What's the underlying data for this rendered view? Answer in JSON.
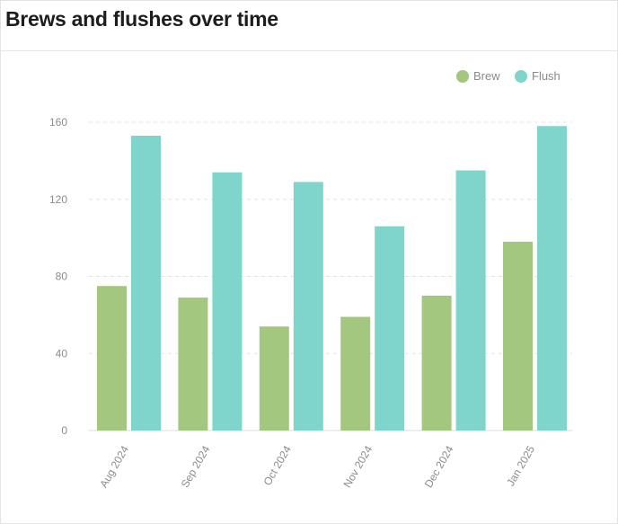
{
  "header": {
    "title": "Brews and flushes over time"
  },
  "chart_data": {
    "type": "bar",
    "title": "Brews and flushes over time",
    "xlabel": "",
    "ylabel": "",
    "categories": [
      "Aug 2024",
      "Sep 2024",
      "Oct 2024",
      "Nov 2024",
      "Dec 2024",
      "Jan 2025"
    ],
    "series": [
      {
        "name": "Brew",
        "color": "#a4c77f",
        "values": [
          75,
          69,
          54,
          59,
          70,
          98
        ]
      },
      {
        "name": "Flush",
        "color": "#7fd4cb",
        "values": [
          153,
          134,
          129,
          106,
          135,
          158
        ]
      }
    ],
    "ylim": [
      0,
      160
    ],
    "yticks": [
      0,
      40,
      80,
      120,
      160
    ],
    "grid": true,
    "legend_position": "top-right"
  }
}
